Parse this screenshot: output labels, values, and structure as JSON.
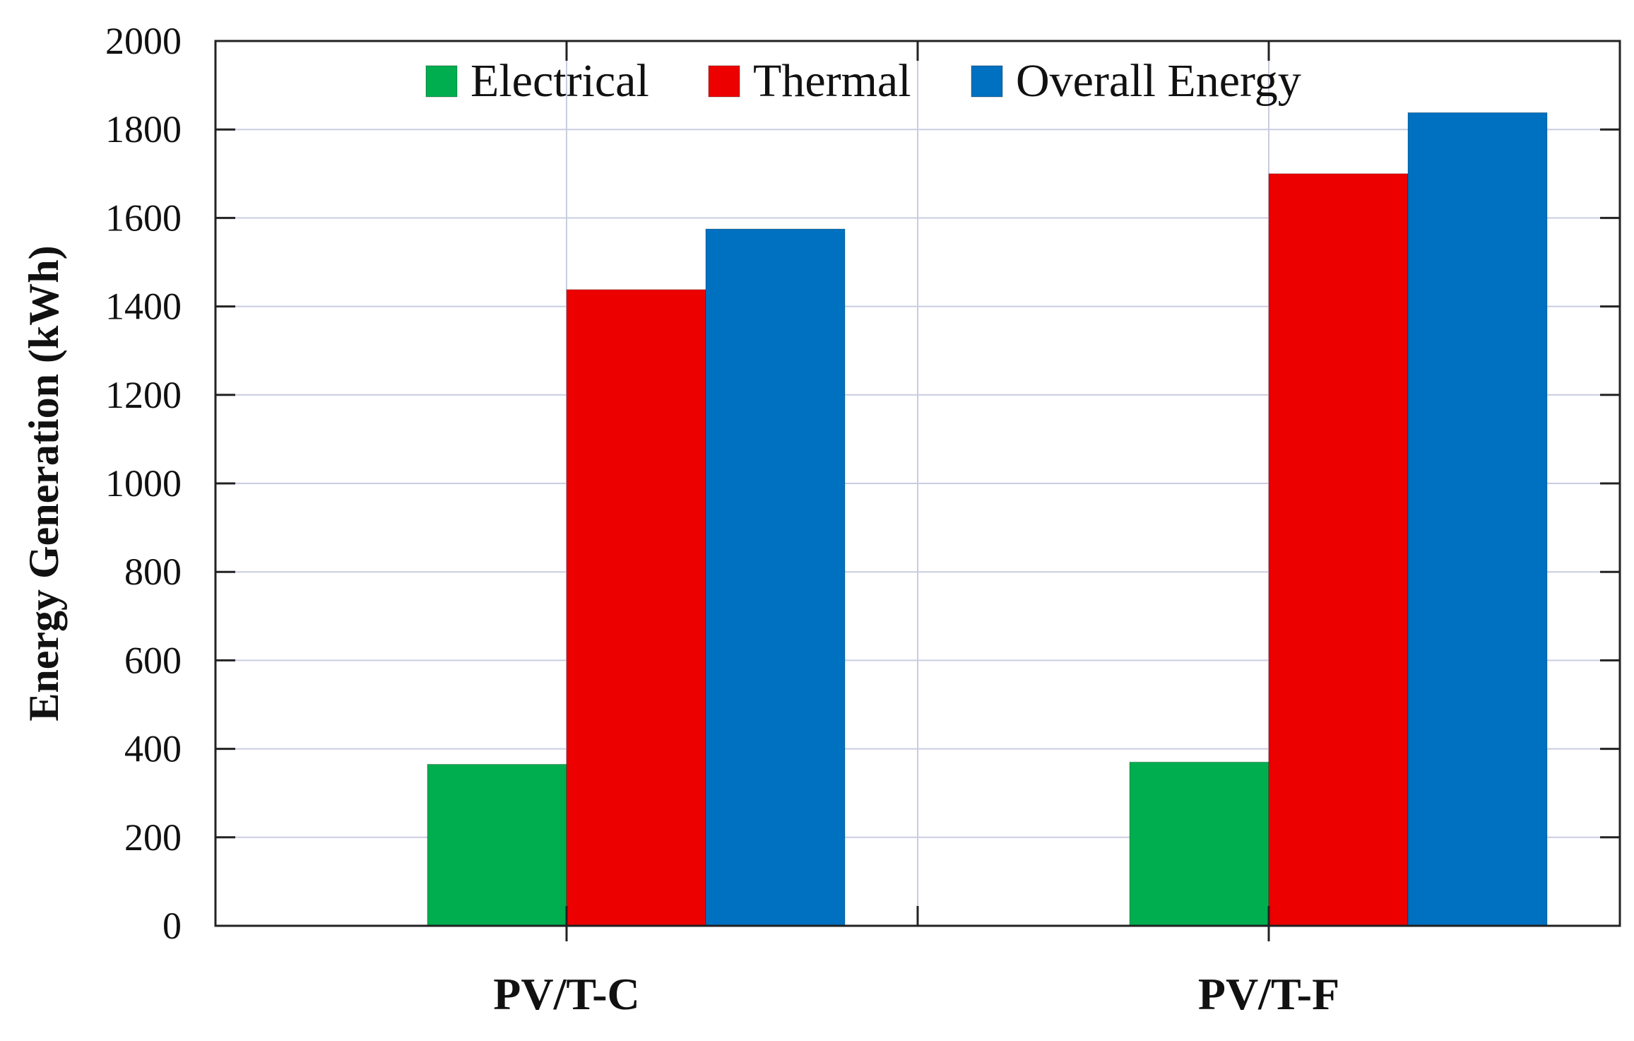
{
  "chart_data": {
    "type": "bar",
    "categories": [
      "PV/T-C",
      "PV/T-F"
    ],
    "series": [
      {
        "name": "Electrical",
        "color": "#00ad4f",
        "values": [
          365,
          370
        ]
      },
      {
        "name": "Thermal",
        "color": "#ec0000",
        "values": [
          1438,
          1700
        ]
      },
      {
        "name": "Overall Energy",
        "color": "#0070c0",
        "values": [
          1575,
          1838
        ]
      }
    ],
    "title": "",
    "xlabel": "",
    "ylabel": "Energy Generation (kWh)",
    "ylim": [
      0,
      2000
    ],
    "yticks": [
      0,
      200,
      400,
      600,
      800,
      1000,
      1200,
      1400,
      1600,
      1800,
      2000
    ],
    "grid": true,
    "legend_position": "top-center"
  }
}
